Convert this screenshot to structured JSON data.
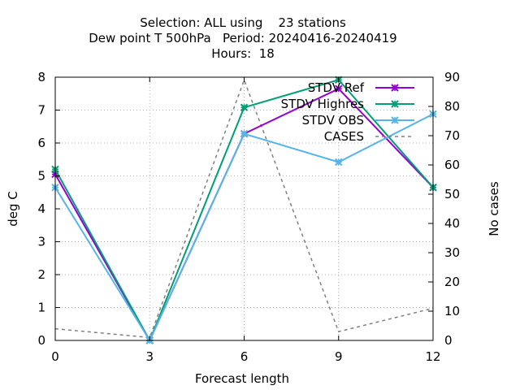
{
  "title": {
    "line1": "Selection: ALL using    23 stations",
    "line2": "Dew point T 500hPa   Period: 20240416-20240419",
    "line3": "Hours:  18"
  },
  "chart_data": {
    "type": "line",
    "x": [
      0,
      3,
      6,
      9,
      12
    ],
    "xlabel": "Forecast length",
    "ylabel": "deg C",
    "y2label": "No cases",
    "xlim": [
      0,
      12
    ],
    "ylim": [
      0,
      8
    ],
    "y2lim": [
      0,
      90
    ],
    "xticks": [
      0,
      3,
      6,
      9,
      12
    ],
    "yticks": [
      0,
      1,
      2,
      3,
      4,
      5,
      6,
      7,
      8
    ],
    "y2ticks": [
      0,
      10,
      20,
      30,
      40,
      50,
      60,
      70,
      80,
      90
    ],
    "grid": true,
    "legend_position": "top-right",
    "series": [
      {
        "name": "STDV Ref",
        "axis": "y1",
        "color": "#9400d3",
        "style": "solid",
        "marker": "x-star",
        "values": [
          5.05,
          0.0,
          6.28,
          7.65,
          4.65
        ]
      },
      {
        "name": "STDV Highres",
        "axis": "y1",
        "color": "#009e73",
        "style": "solid",
        "marker": "x-star",
        "values": [
          5.2,
          0.0,
          7.08,
          7.92,
          4.65
        ]
      },
      {
        "name": "STDV OBS",
        "axis": "y1",
        "color": "#56b4e9",
        "style": "solid",
        "marker": "x-star",
        "values": [
          4.65,
          0.0,
          6.28,
          5.42,
          6.88
        ]
      },
      {
        "name": "CASES",
        "axis": "y2",
        "color": "#808080",
        "style": "dashed",
        "marker": "none",
        "values": [
          4,
          1,
          89,
          3,
          11
        ]
      }
    ]
  }
}
